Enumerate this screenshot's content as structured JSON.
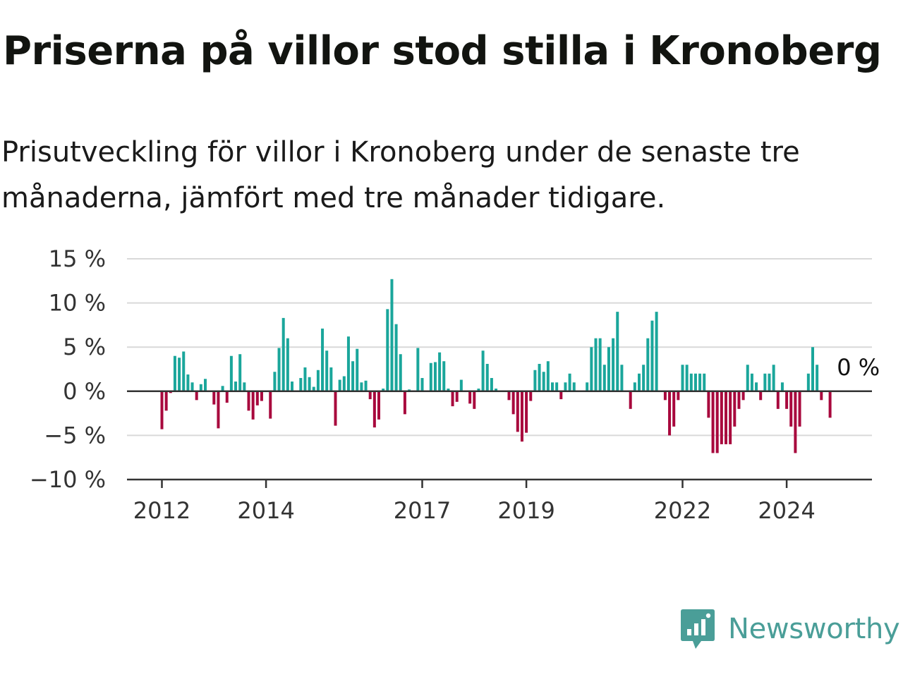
{
  "title": "Priserna på villor stod stilla i Kronoberg",
  "subtitle": "Prisutveckling för villor i Kronoberg under de senaste tre månaderna, jämfört med tre månader tidigare.",
  "brand": {
    "name": "Newsworthy",
    "color": "#4a9e98",
    "icon": "newsworthy-logo-icon"
  },
  "colors": {
    "positive": "#1aa69b",
    "negative": "#a8083d",
    "grid": "#d9d9d9",
    "axis": "#333333"
  },
  "chart_data": {
    "type": "bar",
    "ylim": [
      -10,
      15
    ],
    "y_ticks": [
      15,
      10,
      5,
      0,
      -5,
      -10
    ],
    "y_tick_labels": [
      "15 %",
      "10 %",
      "5 %",
      "0 %",
      "−5 %",
      "−10 %"
    ],
    "x_ticks": [
      "2012",
      "2014",
      "2017",
      "2019",
      "2022",
      "2024"
    ],
    "x_tick_months": [
      "2012-01",
      "2014-01",
      "2017-01",
      "2019-01",
      "2022-01",
      "2024-01"
    ],
    "grid": true,
    "annotation": {
      "label": "0 %",
      "x": "2025-03",
      "y": 0
    },
    "series": [
      {
        "start": "2012-01",
        "frequency": "monthly",
        "values": [
          -4.3,
          -2.2,
          -0.2,
          4.0,
          3.8,
          4.5,
          1.9,
          1.0,
          -1.0,
          0.8,
          1.4,
          0,
          -1.5,
          -4.2,
          0.6,
          -1.3,
          4.0,
          1.1,
          4.2,
          1.0,
          -2.2,
          -3.2,
          -1.6,
          -1.1,
          0,
          -3.1,
          2.2,
          4.9,
          8.3,
          6.0,
          1.1,
          0,
          1.5,
          2.7,
          1.6,
          0.5,
          2.4,
          7.1,
          4.6,
          2.7,
          -3.9,
          1.3,
          1.7,
          6.2,
          3.4,
          4.8,
          1.0,
          1.2,
          -0.9,
          -4.1,
          -3.2,
          0.3,
          9.3,
          12.7,
          7.6,
          4.2,
          -2.6,
          0.2,
          0,
          4.9,
          1.5,
          0,
          3.2,
          3.3,
          4.4,
          3.4,
          0.3,
          -1.7,
          -1.2,
          1.3,
          0,
          -1.4,
          -2.0,
          0.3,
          4.6,
          3.1,
          1.5,
          0.3,
          0,
          0,
          -1.0,
          -2.6,
          -4.6,
          -5.7,
          -4.7,
          -1.1,
          2.4,
          3.1,
          2.2,
          3.4,
          1.0,
          1.0,
          -0.9,
          1.0,
          2.0,
          1.0,
          0,
          0,
          1.0,
          5.0,
          6.0,
          6.0,
          3.0,
          5.0,
          6.0,
          9.0,
          3.0,
          0,
          -2.0,
          1.0,
          2.0,
          3.0,
          6.0,
          8.0,
          9.0,
          0,
          -1.0,
          -5.0,
          -4.0,
          -1.0,
          3.0,
          3.0,
          2.0,
          2.0,
          2.0,
          2.0,
          -3.0,
          -7.0,
          -7.0,
          -6.0,
          -6.0,
          -6.0,
          -4.0,
          -2.0,
          -1.0,
          3.0,
          2.0,
          1.0,
          -1.0,
          2.0,
          2.0,
          3.0,
          -2.0,
          1.0,
          -2.0,
          -4.0,
          -7.0,
          -4.0,
          0,
          2.0,
          5.0,
          3.0,
          -1.0,
          0,
          -3.0
        ]
      }
    ]
  }
}
